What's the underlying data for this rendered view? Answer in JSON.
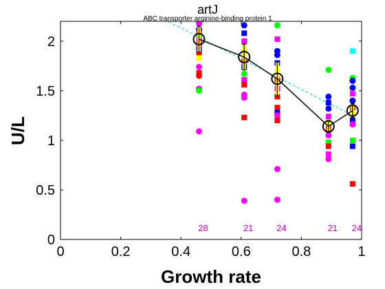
{
  "chart_data": {
    "type": "scatter",
    "title": "artJ",
    "subtitle": "ABC transporter arginine-binding protein 1",
    "xlabel": "Growth rate",
    "ylabel": "U/L",
    "xlim": [
      0,
      1
    ],
    "ylim": [
      0,
      2.2
    ],
    "xticks": [
      "0",
      "0.2",
      "0.4",
      "0.6",
      "0.8",
      "1"
    ],
    "yticks": [
      "0",
      "0.5",
      "1",
      "1.5",
      "2"
    ],
    "grid": false,
    "groups": [
      {
        "x": 0.46,
        "count": "28",
        "points": [
          {
            "y": 2.21,
            "c": "#0000ff",
            "s": "sq"
          },
          {
            "y": 2.18,
            "c": "#ff00ff",
            "s": "ci"
          },
          {
            "y": 2.12,
            "c": "#0000ff",
            "s": "ci"
          },
          {
            "y": 2.08,
            "c": "#ff0000",
            "s": "sq"
          },
          {
            "y": 2.05,
            "c": "#00ff00",
            "s": "ci"
          },
          {
            "y": 2.01,
            "c": "#ff00ff",
            "s": "sq"
          },
          {
            "y": 1.97,
            "c": "#ff0000",
            "s": "ci"
          },
          {
            "y": 1.92,
            "c": "#0000ff",
            "s": "sq"
          },
          {
            "y": 1.87,
            "c": "#ff0000",
            "s": "sq"
          },
          {
            "y": 1.83,
            "c": "#ffff00",
            "s": "sq"
          },
          {
            "y": 1.74,
            "c": "#ff00ff",
            "s": "ci"
          },
          {
            "y": 1.68,
            "c": "#ff0000",
            "s": "sq"
          },
          {
            "y": 1.65,
            "c": "#ff0000",
            "s": "ci"
          },
          {
            "y": 1.52,
            "c": "#ff00ff",
            "s": "ci"
          },
          {
            "y": 1.5,
            "c": "#00ff00",
            "s": "ci"
          },
          {
            "y": 1.09,
            "c": "#ff00ff",
            "s": "ci"
          }
        ]
      },
      {
        "x": 0.61,
        "count": "21",
        "points": [
          {
            "y": 2.16,
            "c": "#0000ff",
            "s": "ci"
          },
          {
            "y": 2.08,
            "c": "#0000ff",
            "s": "sq"
          },
          {
            "y": 2.0,
            "c": "#ff00ff",
            "s": "sq"
          },
          {
            "y": 1.9,
            "c": "#ffff00",
            "s": "sq"
          },
          {
            "y": 1.8,
            "c": "#ff0000",
            "s": "sq"
          },
          {
            "y": 1.74,
            "c": "#0000ff",
            "s": "sq"
          },
          {
            "y": 1.67,
            "c": "#00ff00",
            "s": "ci"
          },
          {
            "y": 1.61,
            "c": "#ff00ff",
            "s": "sq"
          },
          {
            "y": 1.56,
            "c": "#ff0000",
            "s": "sq"
          },
          {
            "y": 1.46,
            "c": "#ff00ff",
            "s": "ci"
          },
          {
            "y": 1.43,
            "c": "#ff00ff",
            "s": "ci"
          },
          {
            "y": 1.23,
            "c": "#ff0000",
            "s": "sq"
          },
          {
            "y": 0.39,
            "c": "#ff00ff",
            "s": "ci"
          }
        ]
      },
      {
        "x": 0.72,
        "count": "24",
        "points": [
          {
            "y": 2.16,
            "c": "#00ff00",
            "s": "ci"
          },
          {
            "y": 2.02,
            "c": "#ff00ff",
            "s": "sq"
          },
          {
            "y": 1.9,
            "c": "#0000ff",
            "s": "ci"
          },
          {
            "y": 1.86,
            "c": "#0000ff",
            "s": "ci"
          },
          {
            "y": 1.78,
            "c": "#0000ff",
            "s": "sq"
          },
          {
            "y": 1.7,
            "c": "#ffff00",
            "s": "sq"
          },
          {
            "y": 1.61,
            "c": "#ff0000",
            "s": "sq"
          },
          {
            "y": 1.52,
            "c": "#ff00ff",
            "s": "sq"
          },
          {
            "y": 1.44,
            "c": "#ff0000",
            "s": "sq"
          },
          {
            "y": 1.33,
            "c": "#ff0000",
            "s": "sq"
          },
          {
            "y": 1.28,
            "c": "#0000ff",
            "s": "sq"
          },
          {
            "y": 1.25,
            "c": "#ff00ff",
            "s": "ci"
          },
          {
            "y": 1.2,
            "c": "#ff0000",
            "s": "sq"
          },
          {
            "y": 0.71,
            "c": "#ff00ff",
            "s": "ci"
          },
          {
            "y": 0.4,
            "c": "#ff00ff",
            "s": "ci"
          }
        ]
      },
      {
        "x": 0.89,
        "count": "21",
        "points": [
          {
            "y": 1.71,
            "c": "#00ff00",
            "s": "ci"
          },
          {
            "y": 1.44,
            "c": "#0000ff",
            "s": "ci"
          },
          {
            "y": 1.38,
            "c": "#0000ff",
            "s": "sq"
          },
          {
            "y": 1.32,
            "c": "#0000ff",
            "s": "ci"
          },
          {
            "y": 1.24,
            "c": "#ff00ff",
            "s": "sq"
          },
          {
            "y": 1.18,
            "c": "#ffff00",
            "s": "sq"
          },
          {
            "y": 1.12,
            "c": "#ff0000",
            "s": "sq"
          },
          {
            "y": 1.05,
            "c": "#ff00ff",
            "s": "ci"
          },
          {
            "y": 0.98,
            "c": "#00ff00",
            "s": "sq"
          },
          {
            "y": 0.94,
            "c": "#ff0000",
            "s": "sq"
          },
          {
            "y": 0.86,
            "c": "#ff00ff",
            "s": "sq"
          },
          {
            "y": 0.81,
            "c": "#ff00ff",
            "s": "ci"
          }
        ]
      },
      {
        "x": 0.97,
        "count": "24",
        "points": [
          {
            "y": 1.9,
            "c": "#00ffff",
            "s": "sq"
          },
          {
            "y": 1.63,
            "c": "#00ff00",
            "s": "ci"
          },
          {
            "y": 1.6,
            "c": "#0000ff",
            "s": "ci"
          },
          {
            "y": 1.53,
            "c": "#0000ff",
            "s": "ci"
          },
          {
            "y": 1.47,
            "c": "#ff00ff",
            "s": "sq"
          },
          {
            "y": 1.4,
            "c": "#0000ff",
            "s": "ci"
          },
          {
            "y": 1.33,
            "c": "#ff0000",
            "s": "sq"
          },
          {
            "y": 1.26,
            "c": "#ffff00",
            "s": "sq"
          },
          {
            "y": 1.2,
            "c": "#0000ff",
            "s": "sq"
          },
          {
            "y": 1.16,
            "c": "#ff00ff",
            "s": "ci"
          },
          {
            "y": 1.0,
            "c": "#00ff00",
            "s": "sq"
          },
          {
            "y": 0.94,
            "c": "#0000ff",
            "s": "sq"
          },
          {
            "y": 0.56,
            "c": "#ff0000",
            "s": "sq"
          }
        ]
      }
    ],
    "mean_line": {
      "color": "#000000",
      "points": [
        {
          "x": 0.46,
          "y": 2.02,
          "err": 0.13
        },
        {
          "x": 0.61,
          "y": 1.84,
          "err": 0.13
        },
        {
          "x": 0.72,
          "y": 1.62,
          "err": 0.17
        },
        {
          "x": 0.89,
          "y": 1.14,
          "err": 0.06
        },
        {
          "x": 0.97,
          "y": 1.3,
          "err": 0.07
        }
      ]
    },
    "fit_line": {
      "color": "#00cccc",
      "x": [
        0.33,
        0.97
      ],
      "y": [
        2.24,
        1.25
      ]
    },
    "error_fill_color": "#ffff00",
    "count_color": "#cc00cc"
  }
}
